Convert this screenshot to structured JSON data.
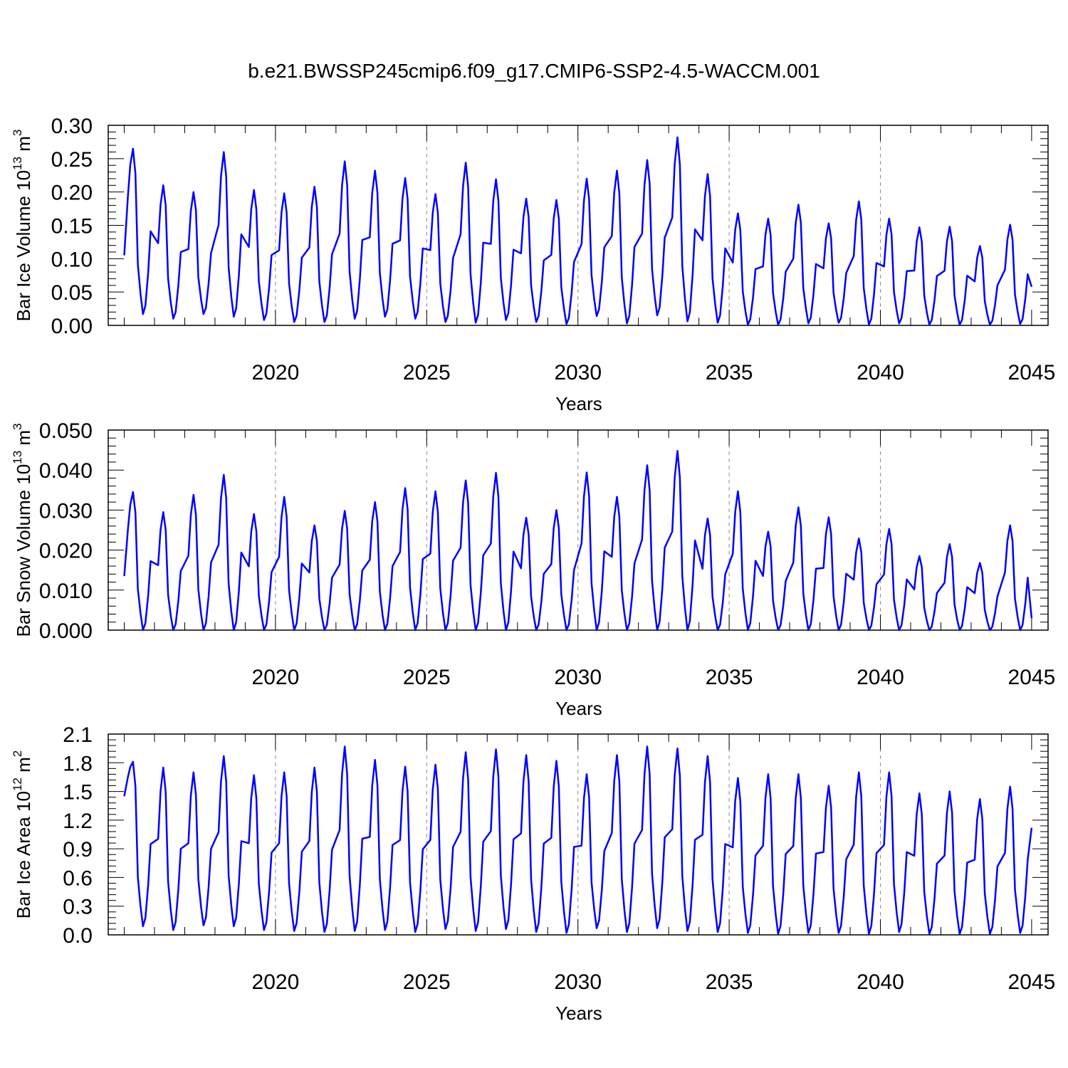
{
  "title": "b.e21.BWSSP245cmip6.f09_g17.CMIP6-SSP2-4.5-WACCM.001",
  "line_color": "#0000ff",
  "chart_data": [
    {
      "type": "line",
      "ylabel": "Bar Ice Volume 10",
      "ylabel_exp": "13",
      "ylabel_unit": " m",
      "ylabel_unit_exp": "3",
      "xlabel": "Years",
      "xlim": [
        2015.0,
        2045.0
      ],
      "ylim": [
        0.0,
        0.3
      ],
      "xticks": [
        2020,
        2025,
        2030,
        2035,
        2040,
        2045
      ],
      "yticks": [
        0.0,
        0.05,
        0.1,
        0.15,
        0.2,
        0.25,
        0.3
      ],
      "ytick_labels": [
        "0.00",
        "0.05",
        "0.10",
        "0.15",
        "0.20",
        "0.25",
        "0.30"
      ],
      "grid": "dashed vertical at decade ticks",
      "series": [
        {
          "annual_peaks": [
            0.265,
            0.21,
            0.2,
            0.26,
            0.203,
            0.198,
            0.208,
            0.246,
            0.232,
            0.221,
            0.197,
            0.244,
            0.219,
            0.19,
            0.188,
            0.22,
            0.232,
            0.248,
            0.282,
            0.227,
            0.168,
            0.16,
            0.181,
            0.153,
            0.186,
            0.16,
            0.147,
            0.148,
            0.119,
            0.151
          ],
          "annual_minima": [
            0.017,
            0.01,
            0.017,
            0.013,
            0.008,
            0.005,
            0.005,
            0.01,
            0.013,
            0.01,
            0.005,
            0.004,
            0.008,
            0.005,
            0.002,
            0.014,
            0.003,
            0.015,
            0.006,
            0.004,
            0.001,
            0.001,
            0.003,
            0.004,
            0.001,
            0.003,
            0.001,
            0.001,
            0.001,
            0.002
          ],
          "first_value": 0.105,
          "last_value": 0.058
        }
      ]
    },
    {
      "type": "line",
      "ylabel": "Bar Snow Volume 10",
      "ylabel_exp": "13",
      "ylabel_unit": " m",
      "ylabel_unit_exp": "3",
      "xlabel": "Years",
      "xlim": [
        2015.0,
        2045.0
      ],
      "ylim": [
        0.0,
        0.05
      ],
      "xticks": [
        2020,
        2025,
        2030,
        2035,
        2040,
        2045
      ],
      "yticks": [
        0.0,
        0.01,
        0.02,
        0.03,
        0.04,
        0.05
      ],
      "ytick_labels": [
        "0.000",
        "0.010",
        "0.020",
        "0.030",
        "0.040",
        "0.050"
      ],
      "grid": "dashed vertical at decade ticks",
      "series": [
        {
          "annual_peaks": [
            0.0345,
            0.0295,
            0.0338,
            0.0388,
            0.029,
            0.0333,
            0.0262,
            0.0298,
            0.032,
            0.0355,
            0.0347,
            0.0374,
            0.0393,
            0.0281,
            0.03,
            0.0394,
            0.0333,
            0.0412,
            0.0448,
            0.0279,
            0.0347,
            0.0246,
            0.0307,
            0.0282,
            0.0229,
            0.0253,
            0.0185,
            0.0215,
            0.0168,
            0.0262
          ],
          "annual_minima": [
            0.0,
            0.0,
            0.0,
            0.0,
            0.0,
            0.0,
            0.0,
            0.0,
            0.0,
            0.0,
            0.0,
            0.0,
            0.0,
            0.0,
            0.0,
            0.0,
            0.0,
            0.0,
            0.0,
            0.0,
            0.0,
            0.0,
            0.0,
            0.0,
            0.0,
            0.0,
            0.0,
            0.0,
            0.0,
            0.0
          ],
          "first_value": 0.0135,
          "last_value": 0.003
        }
      ]
    },
    {
      "type": "line",
      "ylabel": "Bar Ice Area 10",
      "ylabel_exp": "12",
      "ylabel_unit": " m",
      "ylabel_unit_exp": "2",
      "xlabel": "Years",
      "xlim": [
        2015.0,
        2045.0
      ],
      "ylim": [
        0.0,
        2.1
      ],
      "xticks": [
        2020,
        2025,
        2030,
        2035,
        2040,
        2045
      ],
      "yticks": [
        0.0,
        0.3,
        0.6,
        0.9,
        1.2,
        1.5,
        1.8,
        2.1
      ],
      "ytick_labels": [
        "0.0",
        "0.3",
        "0.6",
        "0.9",
        "1.2",
        "1.5",
        "1.8",
        "2.1"
      ],
      "grid": "dashed vertical at decade ticks",
      "series": [
        {
          "annual_peaks": [
            1.81,
            1.75,
            1.7,
            1.87,
            1.67,
            1.7,
            1.75,
            1.97,
            1.83,
            1.76,
            1.78,
            1.91,
            1.94,
            1.88,
            1.82,
            1.68,
            1.88,
            1.97,
            1.95,
            1.87,
            1.64,
            1.68,
            1.68,
            1.56,
            1.7,
            1.7,
            1.48,
            1.5,
            1.42,
            1.55
          ],
          "annual_minima": [
            0.09,
            0.05,
            0.1,
            0.09,
            0.05,
            0.04,
            0.03,
            0.04,
            0.05,
            0.03,
            0.06,
            0.04,
            0.06,
            0.03,
            0.02,
            0.07,
            0.03,
            0.07,
            0.04,
            0.03,
            0.02,
            0.01,
            0.02,
            0.02,
            0.01,
            0.03,
            0.01,
            0.01,
            0.01,
            0.02
          ],
          "first_value": 1.45,
          "last_value": 1.12
        }
      ]
    }
  ]
}
